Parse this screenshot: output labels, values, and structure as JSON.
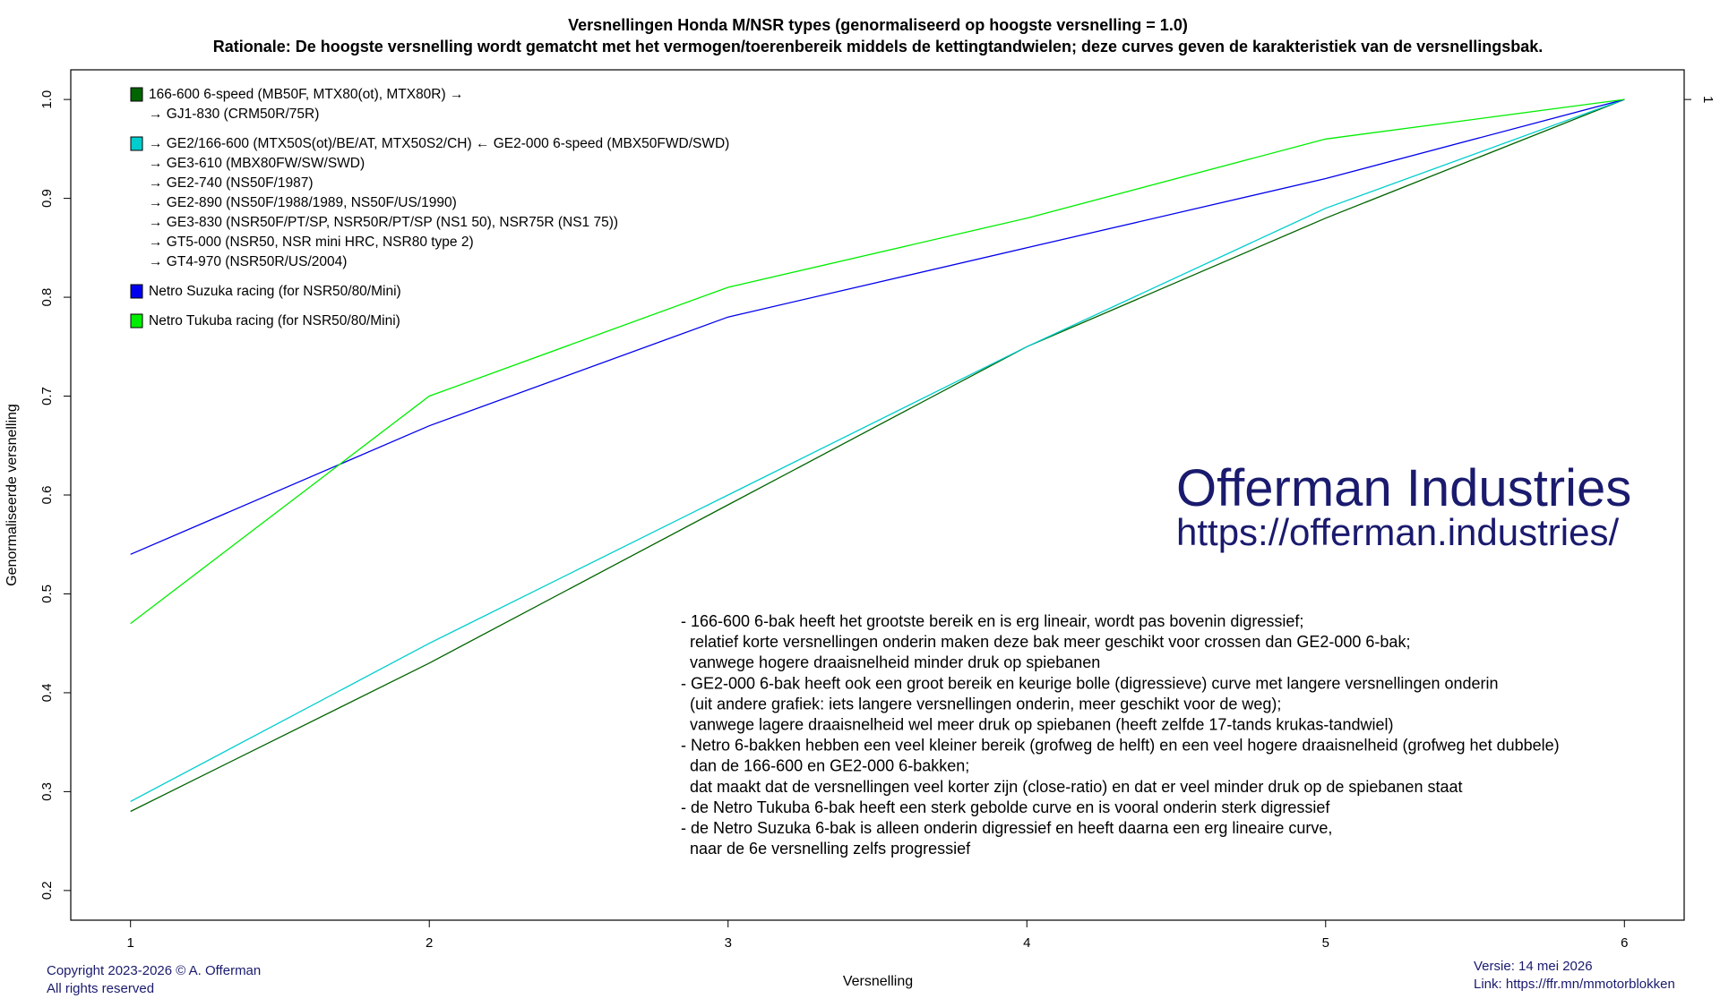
{
  "chart_data": {
    "type": "line",
    "title": "Versnellingen Honda M/NSR types (genormaliseerd op hoogste versnelling = 1.0)",
    "subtitle": "Rationale: De hoogste versnelling wordt gematcht met het vermogen/toerenbereik middels de kettingtandwielen; deze curves geven de karakteristiek van de versnellingsbak.",
    "xlabel": "Versnelling",
    "ylabel": "Genormaliseerde versnelling",
    "x": [
      1,
      2,
      3,
      4,
      5,
      6
    ],
    "xlim": [
      0.8,
      6.2
    ],
    "ylim": [
      0.17,
      1.03
    ],
    "xticks": [
      1,
      2,
      3,
      4,
      5,
      6
    ],
    "yticks": [
      0.2,
      0.3,
      0.4,
      0.5,
      0.6,
      0.7,
      0.8,
      0.9,
      1.0
    ],
    "ytick_labels": [
      "0.2",
      "0.3",
      "0.4",
      "0.5",
      "0.6",
      "0.7",
      "0.8",
      "0.9",
      "1.0"
    ],
    "right_axis_label": "1",
    "grid": false,
    "legend_position": "top-left",
    "series": [
      {
        "values": [
          0.28,
          0.43,
          0.59,
          0.75,
          0.88,
          1.0
        ],
        "color": "#006400"
      },
      {
        "values": [
          0.29,
          0.45,
          0.6,
          0.75,
          0.89,
          1.0
        ],
        "color": "#00cdcd"
      },
      {
        "values": [
          0.54,
          0.67,
          0.78,
          0.85,
          0.92,
          1.0
        ],
        "color": "#0000ee"
      },
      {
        "values": [
          0.47,
          0.7,
          0.81,
          0.88,
          0.96,
          1.0
        ],
        "color": "#00ee00"
      }
    ],
    "legend": [
      {
        "color": "#006400",
        "lines": [
          "166-600 6-speed (MB50F, MTX80(ot), MTX80R) →",
          "→ GJ1-830 (CRM50R/75R)"
        ]
      },
      {
        "color": "#00cdcd",
        "lines": [
          "→ GE2/166-600 (MTX50S(ot)/BE/AT, MTX50S2/CH) ← GE2-000 6-speed (MBX50FWD/SWD)",
          "→ GE3-610 (MBX80FW/SW/SWD)",
          "→ GE2-740 (NS50F/1987)",
          "→ GE2-890 (NS50F/1988/1989, NS50F/US/1990)",
          "→ GE3-830 (NSR50F/PT/SP, NSR50R/PT/SP (NS1 50), NSR75R (NS1 75))",
          "→ GT5-000 (NSR50, NSR mini HRC, NSR80 type 2)",
          "→ GT4-970 (NSR50R/US/2004)"
        ]
      },
      {
        "color": "#0000ee",
        "lines": [
          "Netro Suzuka racing (for NSR50/80/Mini)"
        ]
      },
      {
        "color": "#00ee00",
        "lines": [
          "Netro Tukuba racing (for NSR50/80/Mini)"
        ]
      }
    ],
    "annotations": [
      "- 166-600 6-bak heeft het grootste bereik en is erg lineair, wordt pas bovenin digressief;",
      "  relatief korte versnellingen onderin maken deze bak meer geschikt voor crossen dan GE2-000 6-bak;",
      "  vanwege hogere draaisnelheid minder druk op spiebanen",
      "- GE2-000 6-bak heeft ook een groot bereik en keurige bolle (digressieve) curve met langere versnellingen onderin",
      "  (uit andere grafiek: iets langere versnellingen onderin, meer geschikt voor de weg);",
      "  vanwege lagere draaisnelheid wel meer druk op spiebanen (heeft zelfde 17-tands krukas-tandwiel)",
      "- Netro 6-bakken hebben een veel kleiner bereik (grofweg de helft) en een veel hogere draaisnelheid (grofweg het dubbele)",
      "  dan de 166-600 en GE2-000 6-bakken;",
      "  dat maakt dat de versnellingen veel korter zijn (close-ratio) en dat er veel minder druk op de spiebanen staat",
      "- de Netro Tukuba 6-bak heeft een sterk gebolde curve en is vooral onderin sterk digressief",
      "- de Netro Suzuka 6-bak is alleen onderin digressief en heeft daarna een erg lineaire curve,",
      "  naar de 6e versnelling zelfs progressief"
    ]
  },
  "watermark": {
    "name": "Offerman Industries",
    "url": "https://offerman.industries/"
  },
  "footer": {
    "copyright": "Copyright 2023-2026 © A. Offerman",
    "rights": "All rights reserved",
    "version": "Versie: 14 mei 2026",
    "link": "Link: https://ffr.mn/mmotorblokken"
  }
}
